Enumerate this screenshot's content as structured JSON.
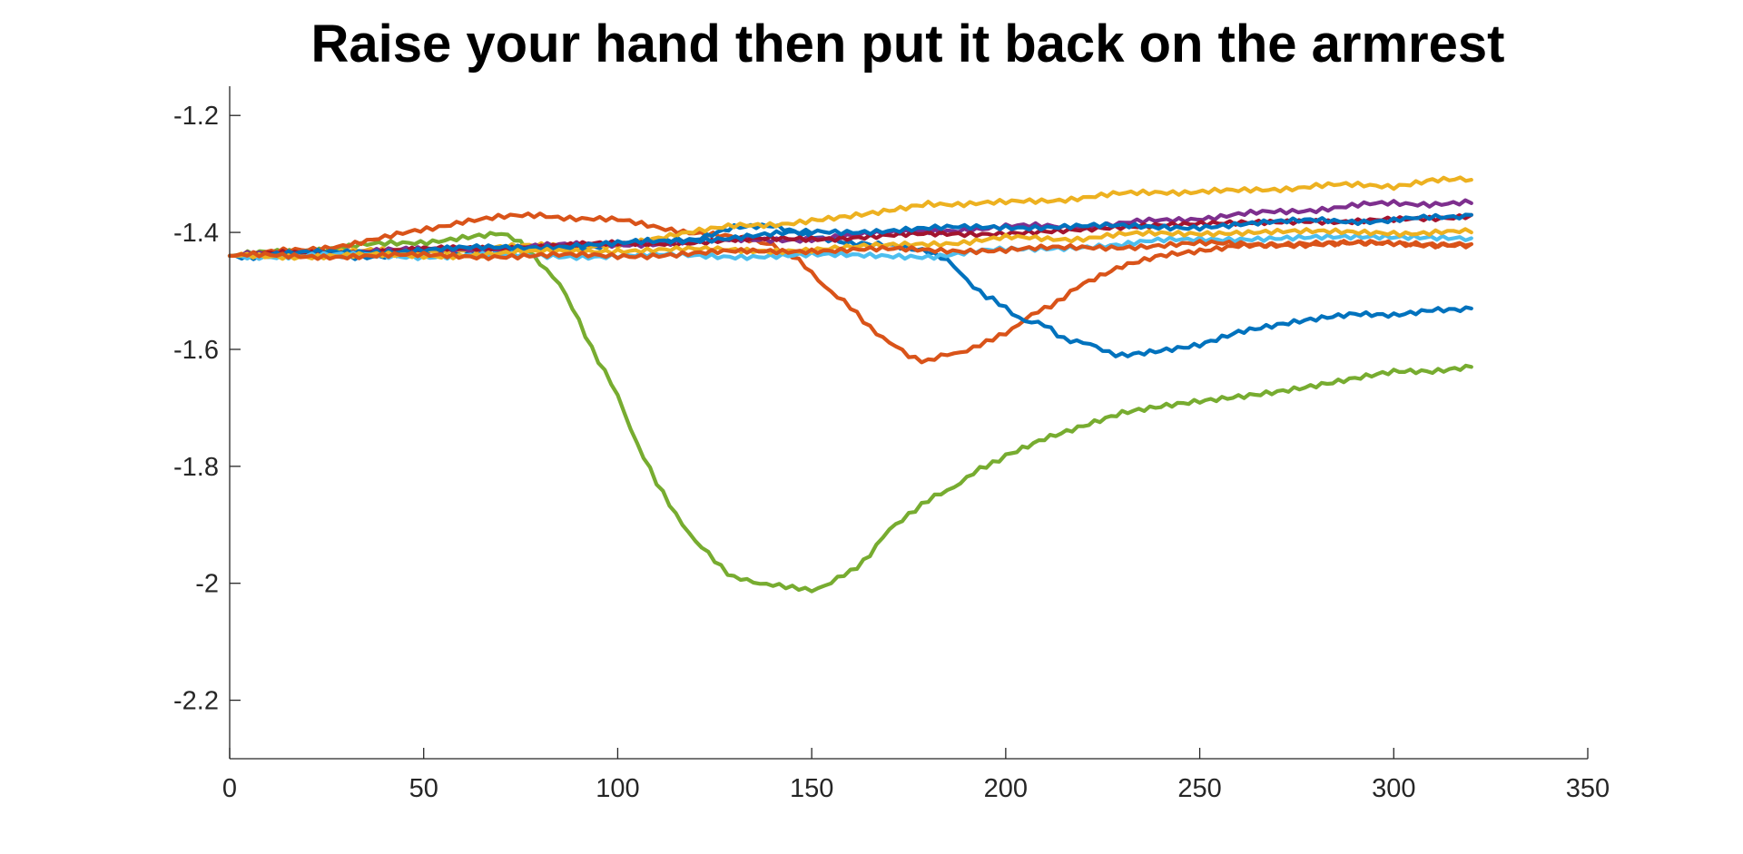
{
  "chart_data": {
    "type": "line",
    "title": "Raise your hand then put it back on the armrest",
    "xlabel": "",
    "ylabel": "",
    "xlim": [
      0,
      350
    ],
    "ylim": [
      -2.3,
      -1.15
    ],
    "xticks": [
      "0",
      "50",
      "100",
      "150",
      "200",
      "250",
      "300",
      "350"
    ],
    "xtick_values": [
      0,
      50,
      100,
      150,
      200,
      250,
      300,
      350
    ],
    "yticks": [
      "-1.2",
      "-1.4",
      "-1.6",
      "-1.8",
      "-2",
      "-2.2"
    ],
    "ytick_values": [
      -1.2,
      -1.4,
      -1.6,
      -1.8,
      -2.0,
      -2.2
    ],
    "grid": false,
    "legend": "none",
    "series": [
      {
        "color": "#77AC30",
        "x": [
          0,
          20,
          40,
          60,
          70,
          75,
          80,
          85,
          90,
          95,
          100,
          105,
          110,
          115,
          120,
          125,
          130,
          135,
          140,
          145,
          150,
          155,
          160,
          165,
          170,
          175,
          180,
          185,
          190,
          195,
          200,
          210,
          220,
          230,
          240,
          250,
          260,
          270,
          280,
          290,
          300,
          310,
          320
        ],
        "y": [
          -1.44,
          -1.43,
          -1.42,
          -1.41,
          -1.4,
          -1.42,
          -1.45,
          -1.49,
          -1.55,
          -1.62,
          -1.68,
          -1.76,
          -1.83,
          -1.88,
          -1.93,
          -1.96,
          -1.99,
          -2.0,
          -2.0,
          -2.01,
          -2.01,
          -2.0,
          -1.98,
          -1.95,
          -1.91,
          -1.88,
          -1.86,
          -1.84,
          -1.82,
          -1.8,
          -1.78,
          -1.75,
          -1.73,
          -1.71,
          -1.7,
          -1.69,
          -1.68,
          -1.67,
          -1.66,
          -1.65,
          -1.64,
          -1.64,
          -1.63
        ]
      },
      {
        "color": "#D95319",
        "x": [
          0,
          20,
          40,
          60,
          80,
          100,
          120,
          140,
          145,
          150,
          155,
          160,
          165,
          170,
          175,
          180,
          185,
          190,
          195,
          200,
          205,
          210,
          215,
          220,
          230,
          240,
          250,
          260,
          270,
          280,
          290,
          300,
          310,
          320
        ],
        "y": [
          -1.44,
          -1.43,
          -1.41,
          -1.38,
          -1.37,
          -1.38,
          -1.4,
          -1.42,
          -1.44,
          -1.47,
          -1.5,
          -1.53,
          -1.56,
          -1.59,
          -1.61,
          -1.62,
          -1.61,
          -1.6,
          -1.59,
          -1.57,
          -1.55,
          -1.53,
          -1.51,
          -1.49,
          -1.46,
          -1.44,
          -1.43,
          -1.42,
          -1.42,
          -1.42,
          -1.42,
          -1.42,
          -1.42,
          -1.42
        ]
      },
      {
        "color": "#0072BD",
        "x": [
          0,
          20,
          40,
          60,
          80,
          100,
          120,
          130,
          140,
          150,
          160,
          170,
          180,
          185,
          190,
          195,
          200,
          205,
          210,
          215,
          220,
          225,
          230,
          240,
          250,
          260,
          270,
          280,
          290,
          300,
          310,
          320
        ],
        "y": [
          -1.44,
          -1.44,
          -1.44,
          -1.43,
          -1.43,
          -1.42,
          -1.41,
          -1.39,
          -1.39,
          -1.41,
          -1.42,
          -1.42,
          -1.43,
          -1.45,
          -1.48,
          -1.51,
          -1.53,
          -1.55,
          -1.56,
          -1.58,
          -1.59,
          -1.6,
          -1.61,
          -1.6,
          -1.59,
          -1.57,
          -1.56,
          -1.55,
          -1.54,
          -1.54,
          -1.53,
          -1.53
        ]
      },
      {
        "color": "#EDB120",
        "x": [
          0,
          50,
          100,
          130,
          150,
          160,
          170,
          180,
          200,
          220,
          240,
          260,
          280,
          300,
          310,
          320
        ],
        "y": [
          -1.44,
          -1.43,
          -1.42,
          -1.39,
          -1.38,
          -1.37,
          -1.36,
          -1.35,
          -1.35,
          -1.34,
          -1.33,
          -1.33,
          -1.32,
          -1.32,
          -1.31,
          -1.31
        ]
      },
      {
        "color": "#7E2F8E",
        "x": [
          0,
          50,
          100,
          150,
          200,
          220,
          240,
          260,
          280,
          300,
          320
        ],
        "y": [
          -1.44,
          -1.43,
          -1.42,
          -1.41,
          -1.39,
          -1.39,
          -1.38,
          -1.37,
          -1.36,
          -1.35,
          -1.35
        ]
      },
      {
        "color": "#A2142F",
        "x": [
          0,
          50,
          100,
          150,
          200,
          240,
          280,
          300,
          320
        ],
        "y": [
          -1.44,
          -1.43,
          -1.42,
          -1.41,
          -1.4,
          -1.39,
          -1.38,
          -1.38,
          -1.37
        ]
      },
      {
        "color": "#0072BD",
        "x": [
          0,
          50,
          100,
          150,
          200,
          250,
          280,
          300,
          320
        ],
        "y": [
          -1.44,
          -1.43,
          -1.42,
          -1.4,
          -1.39,
          -1.39,
          -1.38,
          -1.38,
          -1.37
        ]
      },
      {
        "color": "#4DBEEE",
        "x": [
          0,
          50,
          100,
          150,
          180,
          200,
          230,
          250,
          280,
          320
        ],
        "y": [
          -1.44,
          -1.44,
          -1.44,
          -1.44,
          -1.44,
          -1.43,
          -1.42,
          -1.41,
          -1.41,
          -1.41
        ]
      },
      {
        "color": "#EDB120",
        "x": [
          0,
          50,
          100,
          150,
          180,
          200,
          220,
          240,
          270,
          300,
          320
        ],
        "y": [
          -1.44,
          -1.44,
          -1.43,
          -1.43,
          -1.42,
          -1.41,
          -1.41,
          -1.4,
          -1.4,
          -1.4,
          -1.4
        ]
      },
      {
        "color": "#D95319",
        "x": [
          0,
          50,
          100,
          150,
          200,
          250,
          300,
          320
        ],
        "y": [
          -1.44,
          -1.44,
          -1.44,
          -1.43,
          -1.43,
          -1.42,
          -1.42,
          -1.42
        ]
      }
    ]
  }
}
